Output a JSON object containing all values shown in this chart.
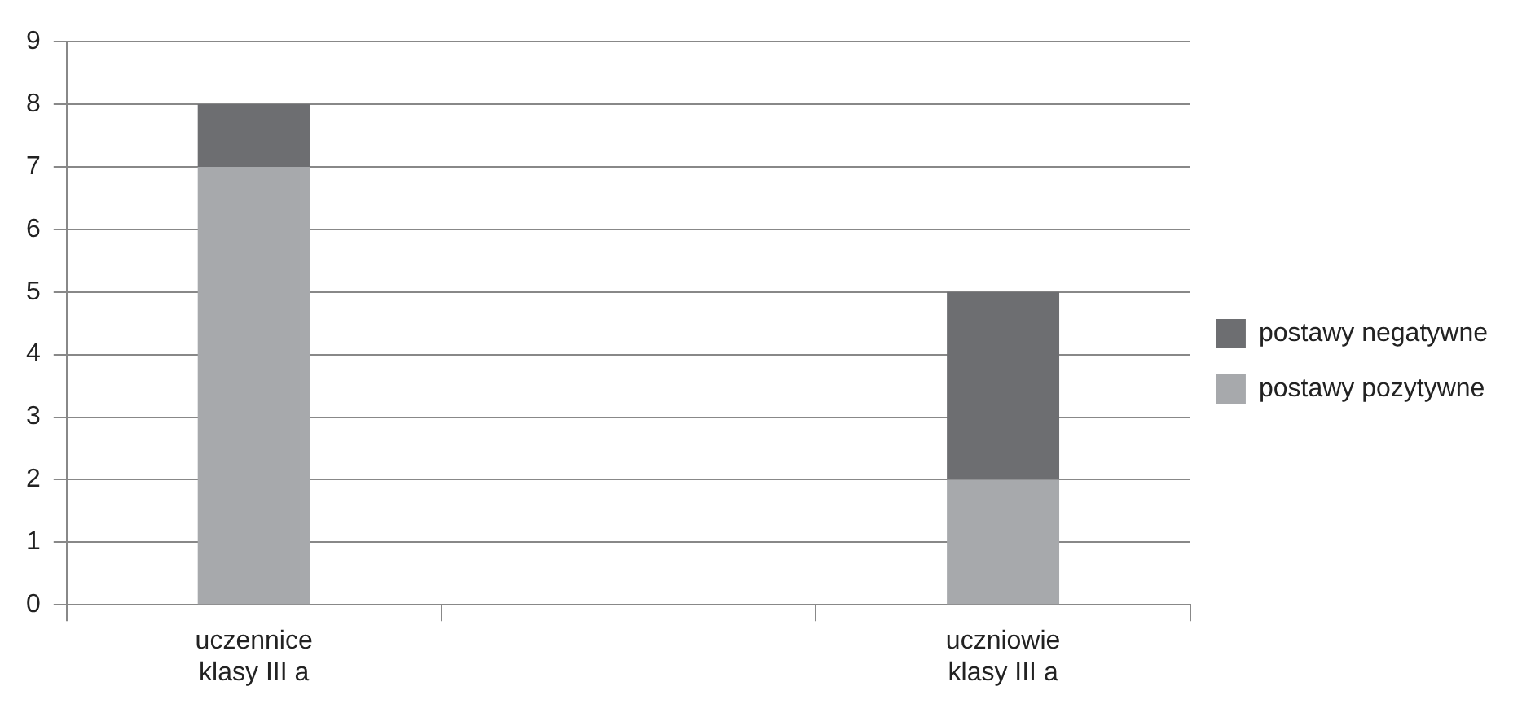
{
  "chart_data": {
    "type": "bar",
    "stacked": true,
    "categories": [
      "uczennice klasy III a",
      null,
      "uczniowie klasy III a"
    ],
    "series": [
      {
        "name": "postawy pozytywne",
        "color": "#a7a9ac",
        "values": [
          7,
          null,
          2
        ]
      },
      {
        "name": "postawy negatywne",
        "color": "#6d6e71",
        "values": [
          1,
          null,
          3
        ]
      }
    ],
    "ylim": [
      0,
      9
    ],
    "yticks": [
      0,
      1,
      2,
      3,
      4,
      5,
      6,
      7,
      8,
      9
    ],
    "grid": "y",
    "legend": "right"
  }
}
